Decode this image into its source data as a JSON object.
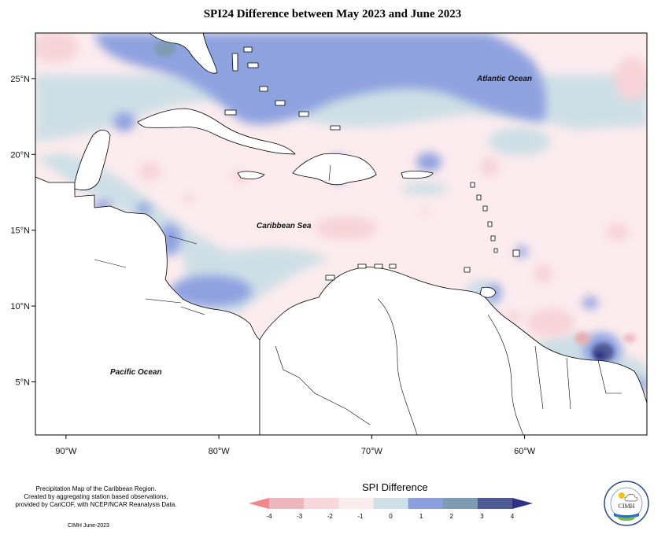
{
  "title": "SPI24 Difference between May 2023 and June 2023",
  "map": {
    "axes": {
      "lon_ticks": [
        {
          "value": -90,
          "label": "90°W"
        },
        {
          "value": -80,
          "label": "80°W"
        },
        {
          "value": -70,
          "label": "70°W"
        },
        {
          "value": -60,
          "label": "60°W"
        }
      ],
      "lat_ticks": [
        {
          "value": 25,
          "label": "25°N"
        },
        {
          "value": 20,
          "label": "20°N"
        },
        {
          "value": 15,
          "label": "15°N"
        },
        {
          "value": 10,
          "label": "10°N"
        },
        {
          "value": 5,
          "label": "5°N"
        }
      ],
      "lon_range": [
        -92,
        -52
      ],
      "lat_range": [
        1.5,
        28
      ]
    },
    "labels": {
      "atlantic": "Atlantic Ocean",
      "caribbean": "Caribbean Sea",
      "pacific": "Pacific Ocean"
    }
  },
  "legend": {
    "title": "SPI Difference",
    "ticks": [
      "-4",
      "-3",
      "-2",
      "-1",
      "0",
      "1",
      "2",
      "3",
      "4"
    ],
    "colors": [
      "#f3858d",
      "#edb7bd",
      "#f8d8dc",
      "#fbecee",
      "#cfe0e8",
      "#8c9fdf",
      "#7e9bb3",
      "#4f5a96",
      "#2f3282"
    ]
  },
  "caption": {
    "line1": "Precipitation Map of the Caribbean Region.",
    "line2": "Created by aggregating station based observations,",
    "line3": "provided by CariCOF, with NCEP/NCAR Reanalysis Data.",
    "credit": "CIMH June-2023"
  },
  "logo": {
    "text": "CIMH"
  }
}
